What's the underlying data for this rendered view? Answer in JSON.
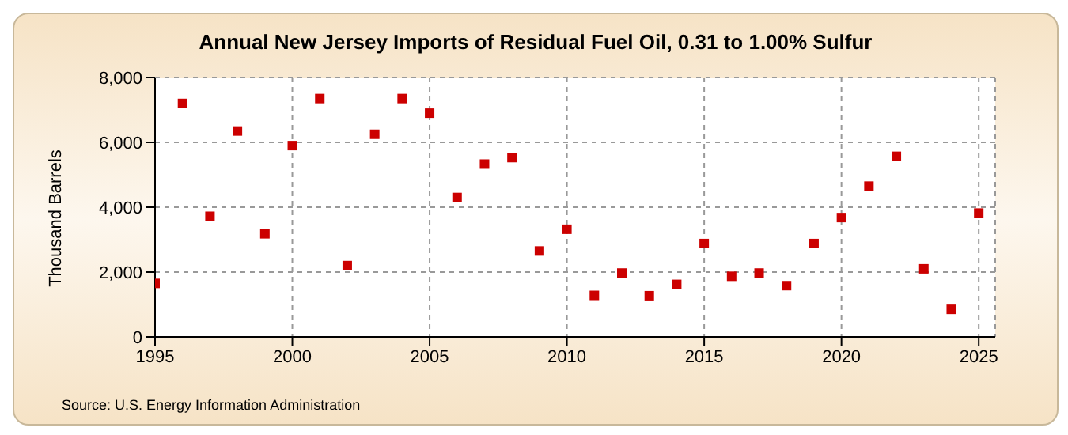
{
  "chart_data": {
    "type": "scatter",
    "title": "Annual New Jersey Imports of Residual Fuel Oil, 0.31 to 1.00% Sulfur",
    "ylabel": "Thousand Barrels",
    "annotations": [
      "Source: U.S. Energy Information Administration"
    ],
    "x": [
      1995,
      1996,
      1997,
      1998,
      1999,
      2000,
      2001,
      2002,
      2003,
      2004,
      2005,
      2006,
      2007,
      2008,
      2009,
      2010,
      2011,
      2012,
      2013,
      2014,
      2015,
      2016,
      2017,
      2018,
      2019,
      2020,
      2021,
      2022,
      2023,
      2024,
      2025
    ],
    "series": [
      {
        "color": "#cc0000",
        "values": [
          1650,
          7200,
          3720,
          6350,
          3180,
          5900,
          7350,
          2200,
          6250,
          7350,
          6900,
          4300,
          5330,
          5530,
          2650,
          3320,
          1280,
          1970,
          1270,
          1620,
          2880,
          1870,
          1970,
          1580,
          2880,
          3680,
          4650,
          5570,
          2100,
          850,
          3820
        ]
      }
    ],
    "xlim": [
      1995,
      2025.6
    ],
    "xticks": [
      1995,
      2000,
      2005,
      2010,
      2015,
      2020,
      2025
    ],
    "ylim": [
      0,
      8000
    ],
    "yticks": [
      {
        "value": 0,
        "label": "0"
      },
      {
        "value": 2000,
        "label": "2,000"
      },
      {
        "value": 4000,
        "label": "4,000"
      },
      {
        "value": 6000,
        "label": "6,000"
      },
      {
        "value": 8000,
        "label": "8,000"
      }
    ],
    "grid": true,
    "marker": "square"
  }
}
